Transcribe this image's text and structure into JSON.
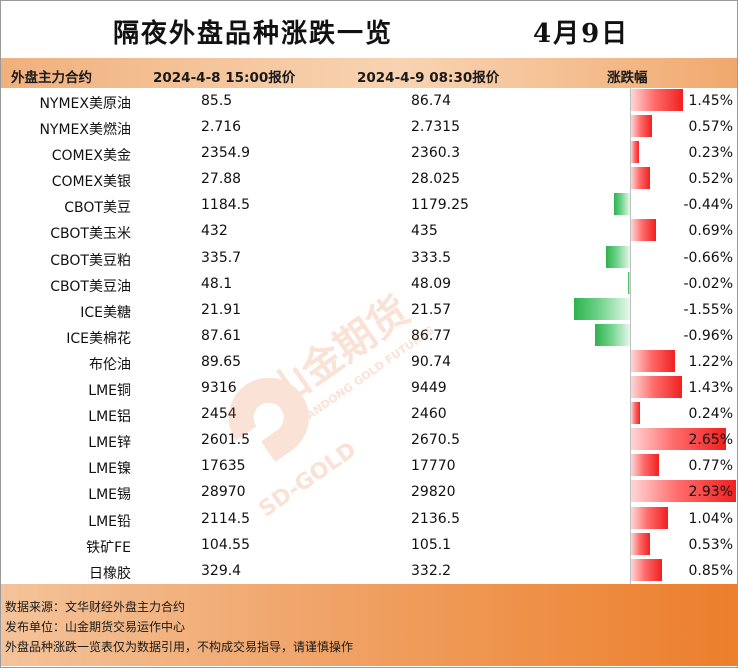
{
  "title": "隔夜外盘品种涨跌一览",
  "date": "4月9日",
  "header": {
    "col_name": "外盘主力合约",
    "col_price1": "2024-4-8 15:00报价",
    "col_price2": "2024-4-9 08:30报价",
    "col_change": "涨跌幅"
  },
  "colors": {
    "up": "#f02020",
    "down": "#2eb24f",
    "accent": "#ec7e2c"
  },
  "rows": [
    {
      "name": "NYMEX美原油",
      "p1": "85.5",
      "p2": "86.74",
      "pct": "1.45%",
      "value": 1.45
    },
    {
      "name": "NYMEX美燃油",
      "p1": "2.716",
      "p2": "2.7315",
      "pct": "0.57%",
      "value": 0.57
    },
    {
      "name": "COMEX美金",
      "p1": "2354.9",
      "p2": "2360.3",
      "pct": "0.23%",
      "value": 0.23
    },
    {
      "name": "COMEX美银",
      "p1": "27.88",
      "p2": "28.025",
      "pct": "0.52%",
      "value": 0.52
    },
    {
      "name": "CBOT美豆",
      "p1": "1184.5",
      "p2": "1179.25",
      "pct": "-0.44%",
      "value": -0.44
    },
    {
      "name": "CBOT美玉米",
      "p1": "432",
      "p2": "435",
      "pct": "0.69%",
      "value": 0.69
    },
    {
      "name": "CBOT美豆粕",
      "p1": "335.7",
      "p2": "333.5",
      "pct": "-0.66%",
      "value": -0.66
    },
    {
      "name": "CBOT美豆油",
      "p1": "48.1",
      "p2": "48.09",
      "pct": "-0.02%",
      "value": -0.02
    },
    {
      "name": "ICE美糖",
      "p1": "21.91",
      "p2": "21.57",
      "pct": "-1.55%",
      "value": -1.55
    },
    {
      "name": "ICE美棉花",
      "p1": "87.61",
      "p2": "86.77",
      "pct": "-0.96%",
      "value": -0.96
    },
    {
      "name": "布伦油",
      "p1": "89.65",
      "p2": "90.74",
      "pct": "1.22%",
      "value": 1.22
    },
    {
      "name": "LME铜",
      "p1": "9316",
      "p2": "9449",
      "pct": "1.43%",
      "value": 1.43
    },
    {
      "name": "LME铝",
      "p1": "2454",
      "p2": "2460",
      "pct": "0.24%",
      "value": 0.24
    },
    {
      "name": "LME锌",
      "p1": "2601.5",
      "p2": "2670.5",
      "pct": "2.65%",
      "value": 2.65
    },
    {
      "name": "LME镍",
      "p1": "17635",
      "p2": "17770",
      "pct": "0.77%",
      "value": 0.77
    },
    {
      "name": "LME锡",
      "p1": "28970",
      "p2": "29820",
      "pct": "2.93%",
      "value": 2.93
    },
    {
      "name": "LME铅",
      "p1": "2114.5",
      "p2": "2136.5",
      "pct": "1.04%",
      "value": 1.04
    },
    {
      "name": "铁矿FE",
      "p1": "104.55",
      "p2": "105.1",
      "pct": "0.53%",
      "value": 0.53
    },
    {
      "name": "日橡胶",
      "p1": "329.4",
      "p2": "332.2",
      "pct": "0.85%",
      "value": 0.85
    }
  ],
  "footer": {
    "line1": "数据来源：文华财经外盘主力合约",
    "line2": "发布单位：山金期货交易运作中心",
    "line3": "外盘品种涨跌一览表仅为数据引用，不构成交易指导，请谨慎操作"
  },
  "watermark": {
    "brand_cn": "山金期货",
    "brand_en": "SHANDONG GOLD FUTURES",
    "logo_text": "SD-GOLD"
  }
}
